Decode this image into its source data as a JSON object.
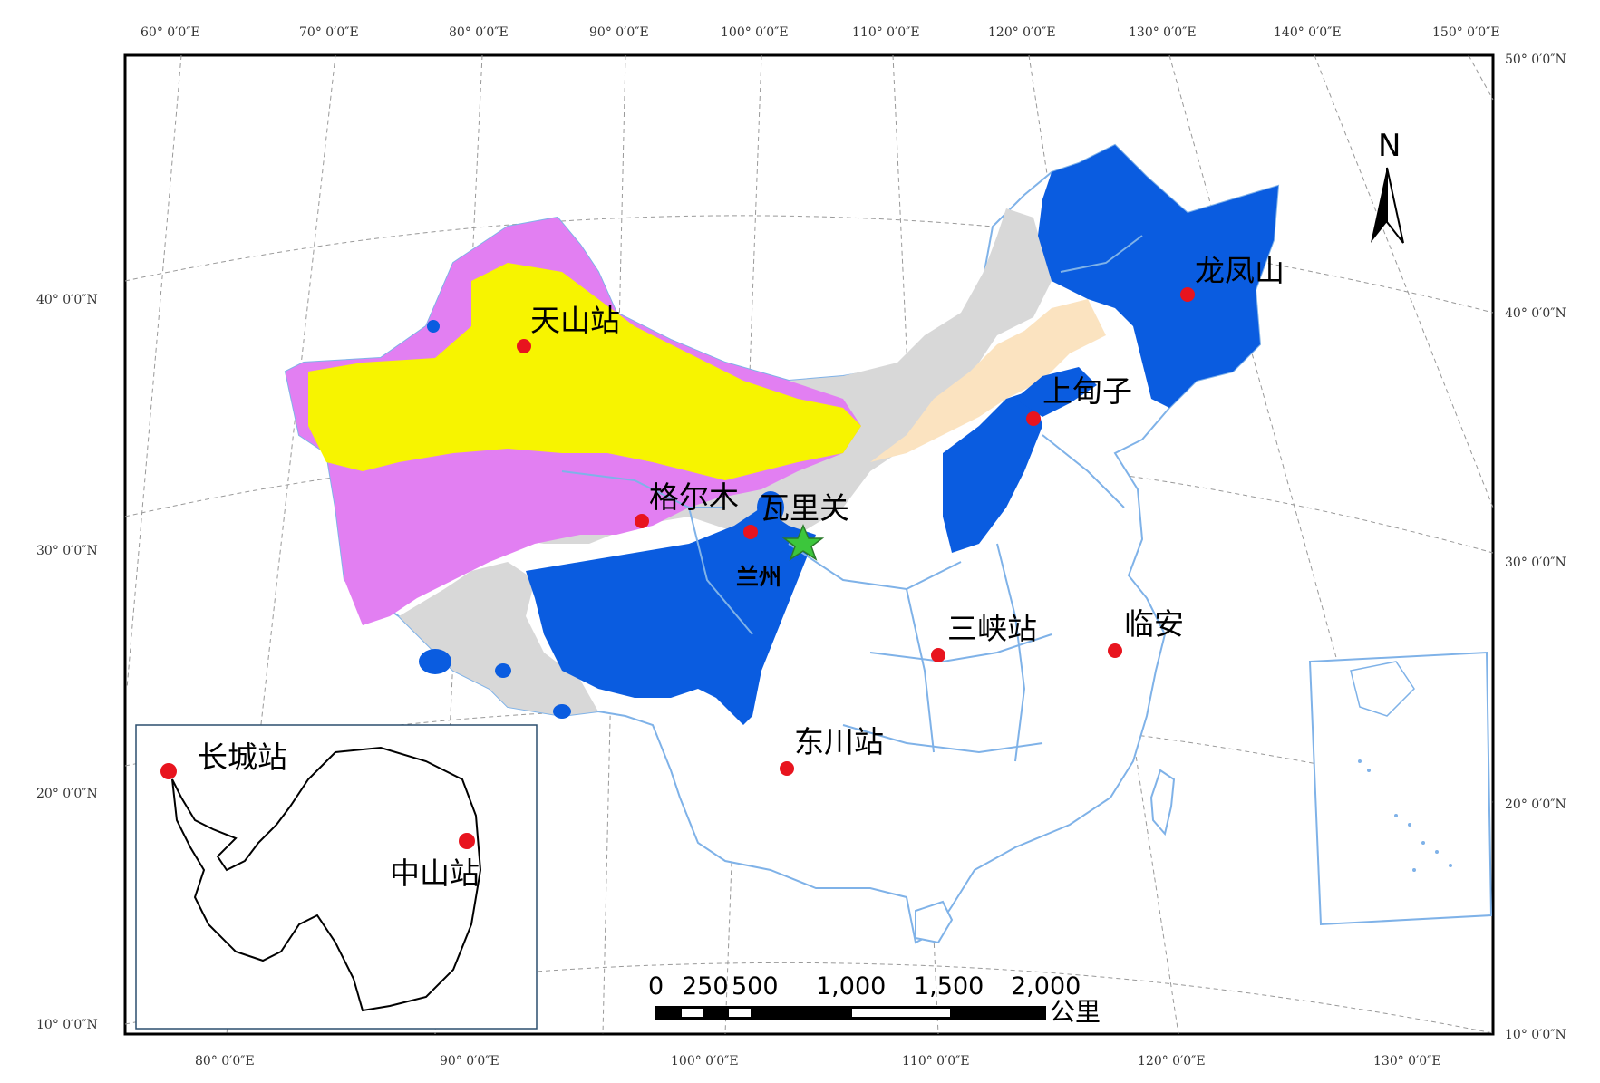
{
  "map": {
    "graticule_top_labels": [
      "60° 0′0″E",
      "70° 0′0″E",
      "80° 0′0″E",
      "90° 0′0″E",
      "100° 0′0″E",
      "110° 0′0″E",
      "120° 0′0″E",
      "130° 0′0″E",
      "140° 0′0″E",
      "150° 0′0″E"
    ],
    "graticule_bottom_labels": [
      "80° 0′0″E",
      "90° 0′0″E",
      "100° 0′0″E",
      "110° 0′0″E",
      "120° 0′0″E",
      "130° 0′0″E"
    ],
    "graticule_left_labels": [
      "40° 0′0″N",
      "30° 0′0″N",
      "20° 0′0″N",
      "10° 0′0″N"
    ],
    "graticule_right_labels": [
      "50° 0′0″N",
      "40° 0′0″N",
      "30° 0′0″N",
      "20° 0′0″N",
      "10° 0′0″N"
    ],
    "north_label": "N",
    "stations": {
      "tianshan": "天山站",
      "longfengshan": "龙凤山",
      "shangdianzi": "上甸子",
      "golmud": "格尔木",
      "waliguan": "瓦里关",
      "lanzhou": "兰州",
      "sanxia": "三峡站",
      "linan": "临安",
      "dongchuan": "东川站"
    },
    "antarctica": {
      "changcheng": "长城站",
      "zhongshan": "中山站"
    },
    "scale_bar": {
      "labels": [
        "0",
        "250",
        "500",
        "1,000",
        "1,500",
        "2,000"
      ],
      "unit": "公里"
    },
    "colors": {
      "blue_zone": "#0a5ce0",
      "yellow_zone": "#f7f400",
      "magenta_zone": "#e27ff2",
      "gray_zone": "#d8d8d8",
      "beige_zone": "#fbe3c0",
      "boundary": "#7fb2e8",
      "station_dot": "#e8141e",
      "star": "#3cc63c"
    }
  }
}
